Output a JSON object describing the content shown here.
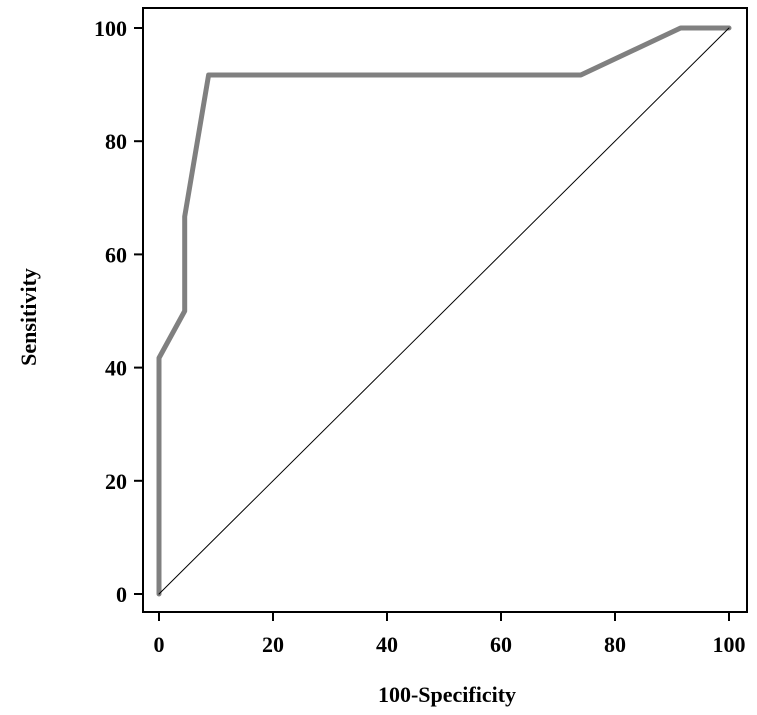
{
  "chart_data": {
    "type": "line",
    "title": "",
    "xlabel": "100-Specificity",
    "ylabel": "Sensitivity",
    "xlim": [
      0,
      100
    ],
    "ylim": [
      0,
      100
    ],
    "x_ticks": [
      "0",
      "20",
      "40",
      "60",
      "80",
      "100"
    ],
    "y_ticks": [
      "0",
      "20",
      "40",
      "60",
      "80",
      "100"
    ],
    "grid": false,
    "legend": "none",
    "series": [
      {
        "x": [
          0,
          0,
          4.5,
          4.5,
          8.7,
          74,
          91.5,
          100
        ],
        "y": [
          0,
          41.7,
          50,
          66.7,
          91.7,
          91.7,
          100,
          100
        ],
        "color": "#808080"
      },
      {
        "x": [
          0,
          100
        ],
        "y": [
          0,
          100
        ],
        "color": "#000000"
      }
    ]
  }
}
